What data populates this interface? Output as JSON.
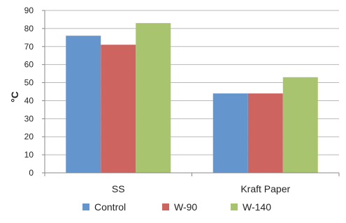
{
  "chart_data": {
    "type": "bar",
    "categories": [
      "SS",
      "Kraft Paper"
    ],
    "series": [
      {
        "name": "Control",
        "values": [
          76,
          44
        ],
        "color": "#6495cd"
      },
      {
        "name": "W-90",
        "values": [
          71,
          44
        ],
        "color": "#cd6460"
      },
      {
        "name": "W-140",
        "values": [
          83,
          53
        ],
        "color": "#a9c46e"
      }
    ],
    "title": "",
    "xlabel": "",
    "ylabel": "°C",
    "ylim": [
      0,
      90
    ],
    "yticks": [
      0,
      10,
      20,
      30,
      40,
      50,
      60,
      70,
      80,
      90
    ],
    "grid": true,
    "legend": "bottom"
  }
}
